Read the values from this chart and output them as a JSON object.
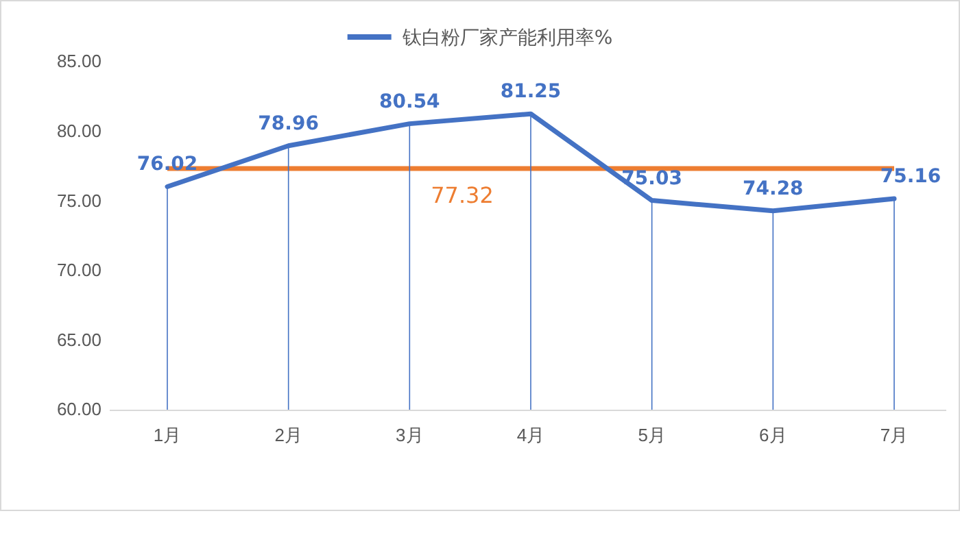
{
  "chart_data": {
    "type": "line",
    "categories": [
      "1月",
      "2月",
      "3月",
      "4月",
      "5月",
      "6月",
      "7月"
    ],
    "series": [
      {
        "name": "钛白粉厂家产能利用率%",
        "color": "#4472c4",
        "values": [
          76.02,
          78.96,
          80.54,
          81.25,
          75.03,
          74.28,
          75.16
        ]
      }
    ],
    "ylim": [
      60,
      85
    ],
    "yticks": [
      {
        "value": 60,
        "label": "60.00"
      },
      {
        "value": 65,
        "label": "65.00"
      },
      {
        "value": 70,
        "label": "70.00"
      },
      {
        "value": 75,
        "label": "75.00"
      },
      {
        "value": 80,
        "label": "80.00"
      },
      {
        "value": 85,
        "label": "85.00"
      }
    ],
    "ref_lines": [
      {
        "axis": "y",
        "value": 77.32,
        "label": "77.32",
        "color": "#ed7d31"
      }
    ],
    "data_labels": true,
    "legend": "top",
    "grid": "x",
    "marker": "none",
    "line_style": "solid"
  }
}
